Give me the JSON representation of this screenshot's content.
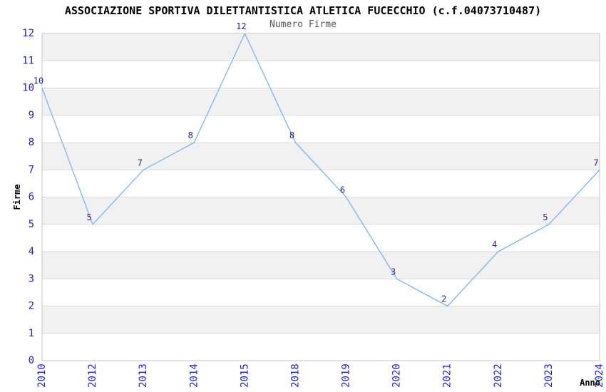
{
  "chart_data": {
    "type": "line",
    "title": "ASSOCIAZIONE SPORTIVA DILETTANTISTICA ATLETICA FUCECCHIO (c.f.04073710487)",
    "subtitle": "Numero Firme",
    "xlabel": "Anno",
    "ylabel": "Firme",
    "categories": [
      "2010",
      "2012",
      "2013",
      "2014",
      "2015",
      "2018",
      "2019",
      "2020",
      "2021",
      "2022",
      "2023",
      "2024"
    ],
    "values": [
      10,
      5,
      7,
      8,
      12,
      8,
      6,
      3,
      2,
      4,
      5,
      7
    ],
    "ylim": [
      0,
      12
    ],
    "ytick_step": 1,
    "grid": "horizontal",
    "bands": "alternating-horizontal",
    "legend": "none",
    "data_labels_shown": true,
    "colors": {
      "line": "#7fb2ec",
      "tick_label": "#2222cc",
      "data_label": "#26268c",
      "band": "#f1f1f1",
      "gridline": "#dcdcdc",
      "plot_border": "#c5c5c5",
      "axis_label": "#000000",
      "title": "#000000",
      "subtitle": "#555555",
      "background": "#ffffff"
    }
  }
}
